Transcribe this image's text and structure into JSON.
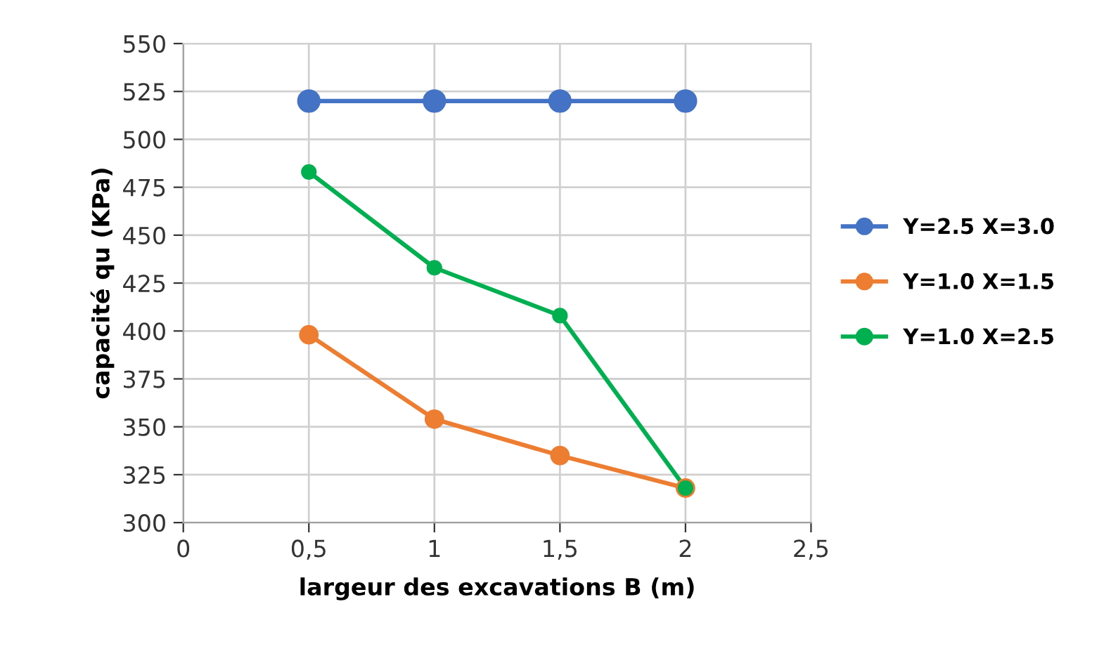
{
  "chart_data": {
    "type": "line",
    "xlabel": "largeur des excavations B (m)",
    "ylabel": "capacité qu (KPa)",
    "x": [
      0.5,
      1,
      1.5,
      2
    ],
    "series": [
      {
        "name": "Y=2.5 X=3.0",
        "color": "#4472c4",
        "values": [
          520,
          520,
          520,
          520
        ]
      },
      {
        "name": "Y=1.0 X=1.5",
        "color": "#ed7d31",
        "values": [
          398,
          354,
          335,
          318
        ]
      },
      {
        "name": "Y=1.0 X=2.5",
        "color": "#00b050",
        "values": [
          483,
          433,
          408,
          318
        ]
      }
    ],
    "xlim": [
      0,
      2.5
    ],
    "xticks": [
      0,
      {
        "value": 0.5,
        "label": "0,5"
      },
      1,
      {
        "value": 1.5,
        "label": "1,5"
      },
      2,
      {
        "value": 2.5,
        "label": "2,5"
      }
    ],
    "ylim": [
      300,
      550
    ],
    "yticks": [
      300,
      325,
      350,
      375,
      400,
      425,
      450,
      475,
      500,
      525,
      550
    ],
    "grid": true,
    "legend": "right",
    "marker": "circle",
    "line_style": "solid"
  }
}
